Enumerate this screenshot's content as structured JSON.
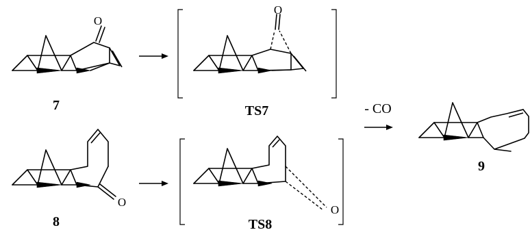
{
  "compounds": {
    "c7": "7",
    "ts7": "TS7",
    "c8": "8",
    "ts8": "TS8",
    "c9": "9"
  },
  "atoms": {
    "oxygen": "O"
  },
  "reagent": "- CO"
}
